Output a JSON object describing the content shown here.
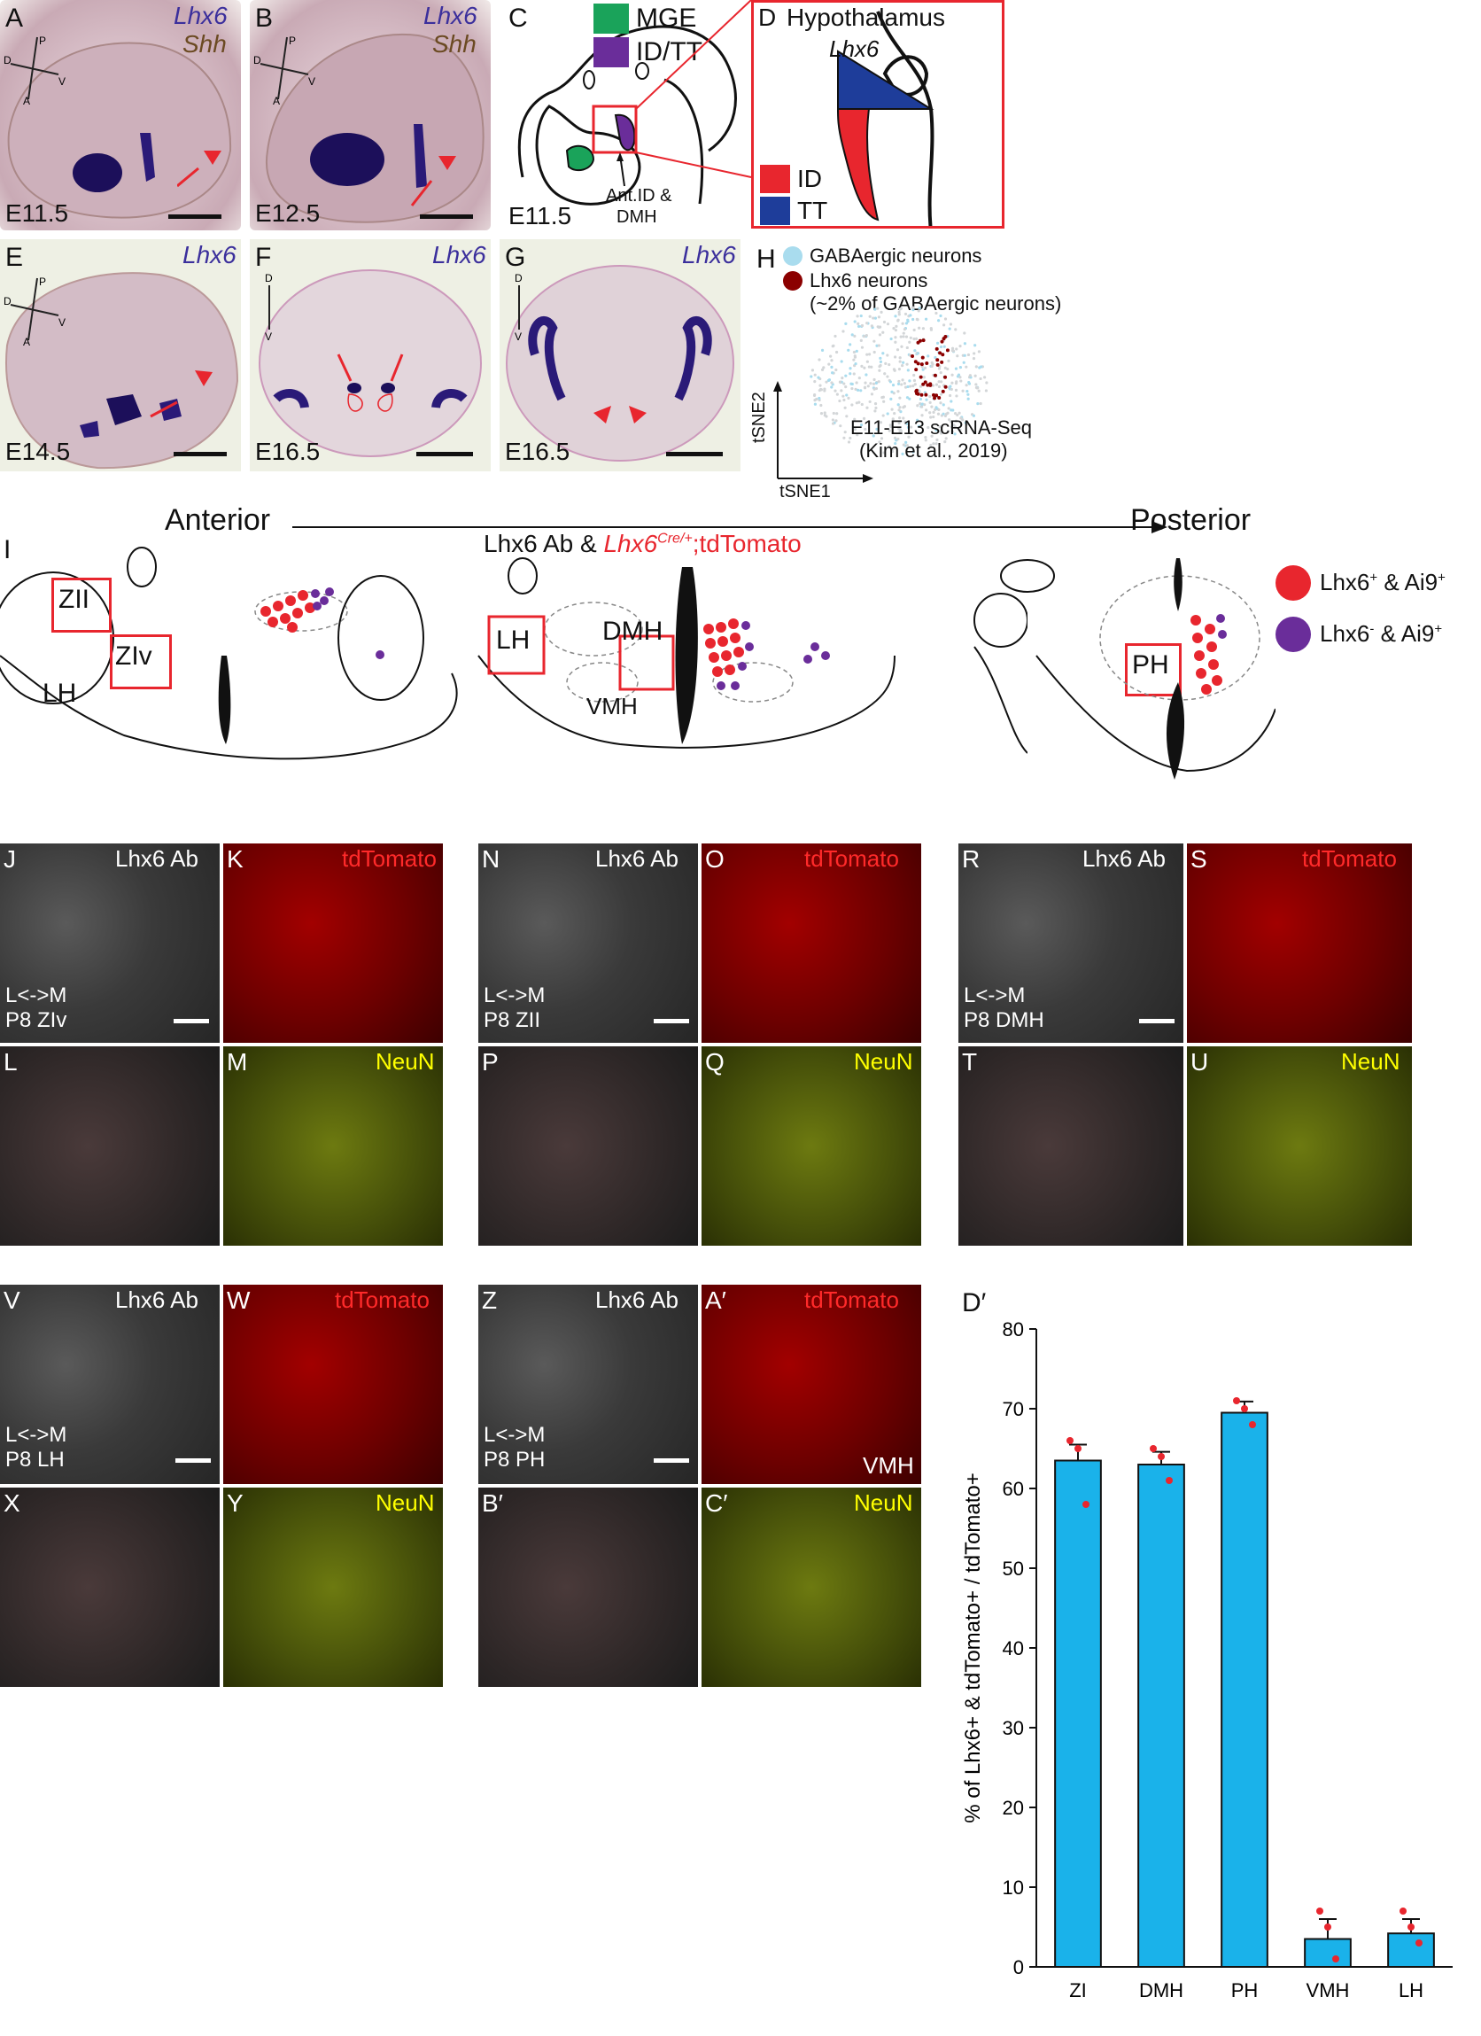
{
  "panels": {
    "A": {
      "letter": "A",
      "gene1": "Lhx6",
      "gene2": "Shh",
      "stage": "E11.5"
    },
    "B": {
      "letter": "B",
      "gene1": "Lhx6",
      "gene2": "Shh",
      "stage": "E12.5"
    },
    "C": {
      "letter": "C",
      "legend": [
        "MGE",
        "ID/TT"
      ],
      "annotation1": "Ant.ID &",
      "annotation2": "DMH",
      "stage": "E11.5"
    },
    "D": {
      "letter": "D",
      "title": "Hypothalamus",
      "gene": "Lhx6",
      "legend": [
        "ID",
        "TT"
      ]
    },
    "E": {
      "letter": "E",
      "gene": "Lhx6",
      "stage": "E14.5"
    },
    "F": {
      "letter": "F",
      "gene": "Lhx6",
      "stage": "E16.5"
    },
    "G": {
      "letter": "G",
      "gene": "Lhx6",
      "stage": "E16.5"
    },
    "H": {
      "letter": "H",
      "legend1": "GABAergic neurons",
      "legend2": "Lhx6 neurons",
      "legend2b": "(~2% of GABAergic neurons)",
      "source1": "E11-E13 scRNA-Seq",
      "source2": "(Kim et al., 2019)",
      "xaxis": "tSNE1",
      "yaxis": "tSNE2"
    },
    "I": {
      "letter": "I",
      "anterior": "Anterior",
      "posterior": "Posterior",
      "title_a": "Lhx6 Ab & ",
      "title_b": "Lhx6",
      "title_sup": "Cre/+",
      "title_c": ";tdTomato",
      "legend1": "Lhx6",
      "legend1b": " & Ai9",
      "legend2": "Lhx6",
      "legend2b": " & Ai9",
      "regions": [
        "ZII",
        "ZIv",
        "LH",
        "LH",
        "DMH",
        "VMH",
        "PH"
      ]
    }
  },
  "axes": {
    "D": "D",
    "P": "P",
    "A": "A",
    "V": "V"
  },
  "micro": {
    "J": {
      "l": "J",
      "t": "Lhx6 Ab",
      "m1": "L<->M",
      "m2": "P8  ZIv"
    },
    "K": {
      "l": "K",
      "t": "tdTomato"
    },
    "L": {
      "l": "L"
    },
    "M": {
      "l": "M",
      "t": "NeuN"
    },
    "N": {
      "l": "N",
      "t": "Lhx6 Ab",
      "m1": "L<->M",
      "m2": "P8  ZII"
    },
    "O": {
      "l": "O",
      "t": "tdTomato"
    },
    "P": {
      "l": "P"
    },
    "Q": {
      "l": "Q",
      "t": "NeuN"
    },
    "R": {
      "l": "R",
      "t": "Lhx6 Ab",
      "m1": "L<->M",
      "m2": "P8 DMH"
    },
    "S": {
      "l": "S",
      "t": "tdTomato"
    },
    "T": {
      "l": "T"
    },
    "U": {
      "l": "U",
      "t": "NeuN"
    },
    "V": {
      "l": "V",
      "t": "Lhx6 Ab",
      "m1": "L<->M",
      "m2": "P8  LH"
    },
    "W": {
      "l": "W",
      "t": "tdTomato"
    },
    "X": {
      "l": "X"
    },
    "Y": {
      "l": "Y",
      "t": "NeuN"
    },
    "Z": {
      "l": "Z",
      "t": "Lhx6 Ab",
      "m1": "L<->M",
      "m2": "P8 PH"
    },
    "A2": {
      "l": "A′",
      "t": "tdTomato",
      "extra": "VMH"
    },
    "B2": {
      "l": "B′"
    },
    "C2": {
      "l": "C′",
      "t": "NeuN"
    }
  },
  "chart_letter": "D′",
  "chart_data": {
    "type": "bar",
    "categories": [
      "ZI",
      "DMH",
      "PH",
      "VMH",
      "LH"
    ],
    "values": [
      63.5,
      63,
      69.5,
      3.5,
      4.2
    ],
    "errors": [
      2,
      1.6,
      1.4,
      2.5,
      1.8
    ],
    "points": [
      [
        66,
        65,
        58
      ],
      [
        65,
        64,
        61
      ],
      [
        71,
        70,
        68
      ],
      [
        7,
        5,
        1
      ],
      [
        7,
        5,
        3
      ]
    ],
    "ylabel": "% of Lhx6+ & tdTomato+ / tdTomato+",
    "ylim": [
      0,
      80
    ],
    "yticks": [
      0,
      10,
      20,
      30,
      40,
      50,
      60,
      70,
      80
    ],
    "bar_color": "#1ab2ea",
    "point_color": "#e8262e"
  }
}
